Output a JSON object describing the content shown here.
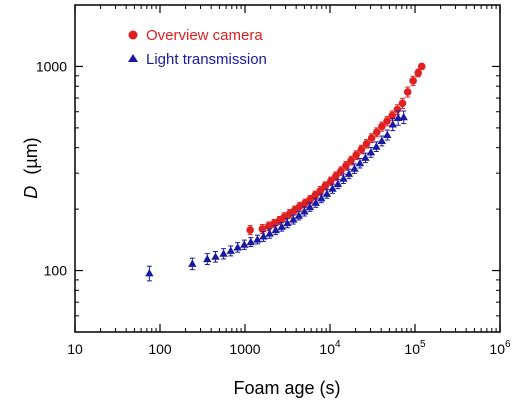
{
  "chart_data": {
    "type": "scatter",
    "xscale": "log",
    "yscale": "log",
    "xlim": [
      10,
      1000000
    ],
    "ylim": [
      50,
      2000
    ],
    "xlabel": "Foam age  (s)",
    "ylabel_main": "D",
    "ylabel_unit": "(µm)",
    "legend_position": "top-left",
    "grid": false,
    "x_ticks": [
      {
        "value": 10,
        "label": "10",
        "sup": ""
      },
      {
        "value": 100,
        "label": "100",
        "sup": ""
      },
      {
        "value": 1000,
        "label": "1000",
        "sup": ""
      },
      {
        "value": 10000,
        "label": "10",
        "sup": "4"
      },
      {
        "value": 100000,
        "label": "10",
        "sup": "5"
      },
      {
        "value": 1000000,
        "label": "10",
        "sup": "6"
      }
    ],
    "y_ticks": [
      {
        "value": 100,
        "label": "100"
      },
      {
        "value": 1000,
        "label": "1000"
      }
    ],
    "series": [
      {
        "name": "Overview camera",
        "marker": "circle",
        "color": "#e02020",
        "x": [
          1150,
          1600,
          1900,
          2200,
          2550,
          2900,
          3350,
          3850,
          4400,
          5100,
          5850,
          6700,
          7700,
          8800,
          10200,
          11700,
          13400,
          15400,
          17700,
          20300,
          23400,
          26900,
          30900,
          35500,
          40800,
          46900,
          53900,
          62000,
          71300,
          82000,
          95000,
          109000,
          120000
        ],
        "y": [
          158,
          160,
          165,
          170,
          176,
          183,
          190,
          198,
          206,
          214,
          223,
          234,
          246,
          260,
          274,
          290,
          307,
          326,
          346,
          368,
          392,
          418,
          446,
          476,
          508,
          540,
          575,
          615,
          660,
          750,
          850,
          930,
          1000
        ],
        "err": [
          8,
          8,
          8,
          8,
          8,
          9,
          9,
          9,
          10,
          10,
          10,
          11,
          12,
          12,
          13,
          14,
          15,
          16,
          17,
          18,
          19,
          20,
          22,
          24,
          26,
          28,
          30,
          34,
          38,
          42,
          45,
          40,
          30
        ]
      },
      {
        "name": "Light transmission",
        "marker": "triangle",
        "color": "#1a1aa0",
        "x": [
          75,
          240,
          360,
          450,
          560,
          680,
          820,
          980,
          1170,
          1400,
          1650,
          1950,
          2300,
          2700,
          3150,
          3700,
          4300,
          5000,
          5800,
          6800,
          7900,
          9200,
          10700,
          12400,
          14400,
          16700,
          19400,
          22500,
          26100,
          30300,
          35100,
          40700,
          47200,
          54700,
          63400,
          73600
        ],
        "y": [
          97,
          108,
          114,
          117,
          121,
          125,
          130,
          134,
          138,
          142,
          147,
          152,
          158,
          164,
          171,
          178,
          186,
          195,
          205,
          215,
          226,
          238,
          252,
          266,
          282,
          298,
          316,
          336,
          357,
          380,
          405,
          432,
          462,
          520,
          560,
          565
        ],
        "err": [
          8,
          7,
          7,
          7,
          7,
          7,
          7,
          7,
          7,
          7,
          8,
          8,
          8,
          8,
          9,
          9,
          9,
          10,
          10,
          11,
          11,
          12,
          13,
          14,
          15,
          16,
          17,
          18,
          19,
          21,
          22,
          24,
          26,
          35,
          45,
          40
        ]
      }
    ]
  }
}
